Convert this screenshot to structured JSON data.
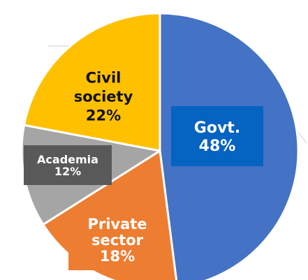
{
  "chart_data": {
    "type": "pie",
    "title": "",
    "slices": [
      {
        "label_lines": [
          "Govt.",
          "48%"
        ],
        "value": 48,
        "color": "#4472c4"
      },
      {
        "label_lines": [
          "Private",
          "sector",
          "18%"
        ],
        "value": 18,
        "color": "#ed7d31"
      },
      {
        "label_lines": [
          "Academia",
          "12%"
        ],
        "value": 12,
        "color": "#a5a5a5"
      },
      {
        "label_lines": [
          "Civil",
          "society",
          "22%"
        ],
        "value": 22,
        "color": "#ffc000"
      }
    ],
    "label_style": [
      {
        "text_color": "#ffffff",
        "box_color": "#0563c1"
      },
      {
        "text_color": "#ffffff",
        "box_color": "#ed7d31"
      },
      {
        "text_color": "#ffffff",
        "box_color": "#595959"
      },
      {
        "text_color": "#111111",
        "box_color": "none"
      }
    ]
  }
}
